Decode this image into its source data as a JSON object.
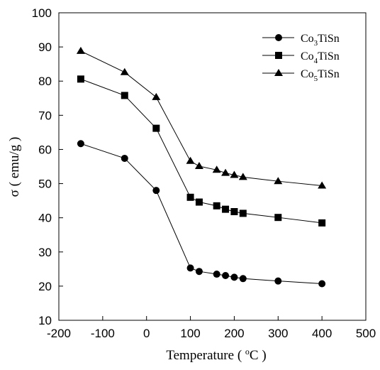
{
  "chart_data": {
    "type": "line",
    "xlabel": "Temperature ( °C )",
    "xlabel_parts": {
      "prefix": "Temperature ( ",
      "sup": "o",
      "unit": "C )"
    },
    "ylabel": "σ ( emu/g )",
    "xlim": [
      -200,
      500
    ],
    "ylim": [
      10,
      100
    ],
    "xticks": [
      -200,
      -100,
      0,
      100,
      200,
      300,
      400,
      500
    ],
    "yticks": [
      10,
      20,
      30,
      40,
      50,
      60,
      70,
      80,
      90,
      100
    ],
    "grid": false,
    "legend_position": "top-right",
    "series": [
      {
        "name": "Co3TiSn",
        "label_parts": [
          "Co",
          "3",
          "TiSn"
        ],
        "marker": "circle",
        "x": [
          -150,
          -50,
          22,
          100,
          120,
          160,
          180,
          200,
          220,
          300,
          400
        ],
        "y": [
          61.7,
          57.4,
          48.0,
          25.3,
          24.3,
          23.5,
          23.1,
          22.6,
          22.2,
          21.5,
          20.7
        ]
      },
      {
        "name": "Co4TiSn",
        "label_parts": [
          "Co",
          "4",
          "TiSn"
        ],
        "marker": "square",
        "x": [
          -150,
          -50,
          22,
          100,
          120,
          160,
          180,
          200,
          220,
          300,
          400
        ],
        "y": [
          80.6,
          75.8,
          66.2,
          46.0,
          44.6,
          43.5,
          42.5,
          41.8,
          41.3,
          40.1,
          38.5
        ]
      },
      {
        "name": "Co5TiSn",
        "label_parts": [
          "Co",
          "5",
          "TiSn"
        ],
        "marker": "triangle",
        "x": [
          -150,
          -50,
          22,
          100,
          120,
          160,
          180,
          200,
          220,
          300,
          400
        ],
        "y": [
          88.8,
          82.6,
          75.3,
          56.6,
          55.1,
          54.0,
          53.1,
          52.5,
          51.9,
          50.7,
          49.4
        ]
      }
    ]
  }
}
